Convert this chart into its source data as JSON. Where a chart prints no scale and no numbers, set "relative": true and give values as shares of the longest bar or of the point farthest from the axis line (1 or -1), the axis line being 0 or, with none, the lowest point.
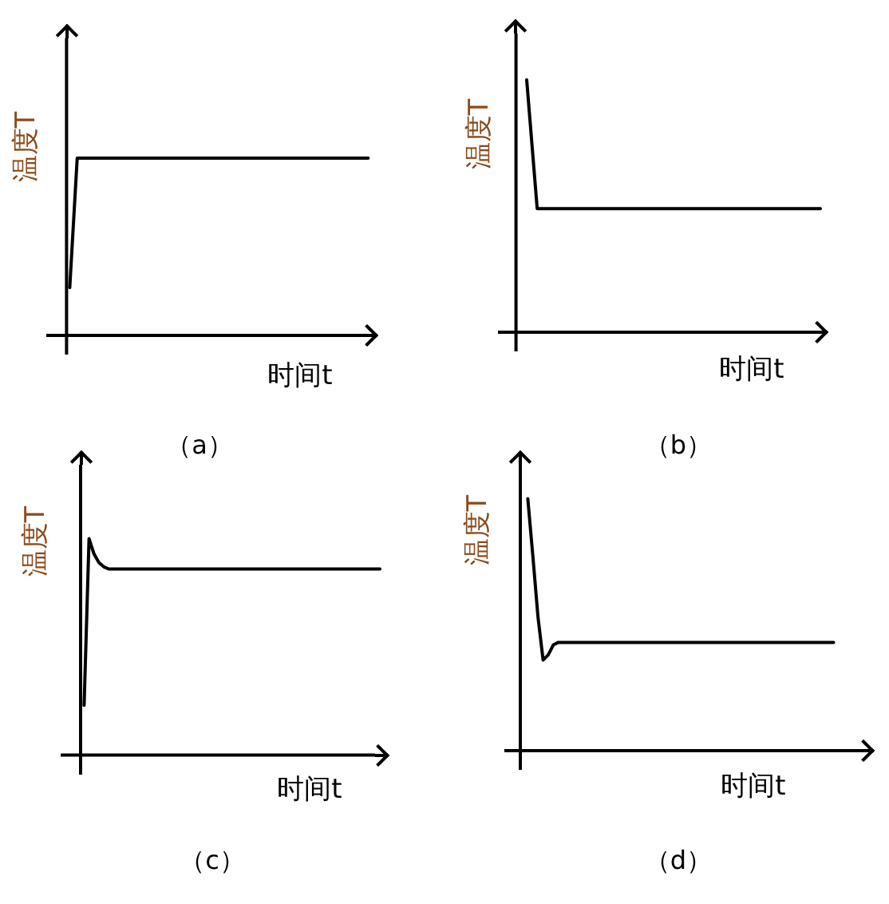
{
  "chart_data": [
    {
      "type": "line",
      "relative": true,
      "title": "（a）",
      "xlabel": "时间t",
      "ylabel": "温度T",
      "color": "#000000",
      "categories": [
        null,
        null,
        null,
        null,
        null,
        null,
        null,
        null,
        null,
        null,
        null,
        null,
        null,
        null,
        null,
        null,
        null,
        null,
        null,
        null,
        null,
        null,
        null,
        null,
        null,
        null,
        null,
        null,
        null,
        null,
        null,
        null,
        null,
        null,
        null,
        null,
        null,
        null,
        null,
        null,
        null
      ],
      "values": [
        0.27,
        1,
        1,
        1,
        1,
        1,
        1,
        1,
        1,
        1,
        1,
        1,
        1,
        1,
        1,
        1,
        1,
        1,
        1,
        1,
        1,
        1,
        1,
        1,
        1,
        1,
        1,
        1,
        1,
        1,
        1,
        1,
        1,
        1,
        1,
        1,
        1,
        1,
        1,
        1,
        1
      ]
    },
    {
      "type": "line",
      "relative": true,
      "title": "（b）",
      "xlabel": "时间t",
      "ylabel": "温度T",
      "color": "#000000",
      "categories": [
        null,
        null,
        null,
        null,
        null,
        null,
        null,
        null,
        null,
        null,
        null,
        null,
        null,
        null,
        null,
        null,
        null,
        null,
        null,
        null,
        null,
        null,
        null,
        null,
        null,
        null,
        null,
        null,
        null
      ],
      "values": [
        1,
        0.49,
        0.49,
        0.49,
        0.49,
        0.49,
        0.49,
        0.49,
        0.49,
        0.49,
        0.49,
        0.49,
        0.49,
        0.49,
        0.49,
        0.49,
        0.49,
        0.49,
        0.49,
        0.49,
        0.49,
        0.49,
        0.49,
        0.49,
        0.49,
        0.49,
        0.49,
        0.49,
        0.49
      ]
    },
    {
      "type": "line",
      "relative": true,
      "title": "（c）",
      "xlabel": "时间t",
      "ylabel": "温度T",
      "color": "#000000",
      "categories": [
        null,
        null,
        null,
        null,
        null,
        null,
        null,
        null,
        null,
        null,
        null,
        null,
        null,
        null,
        null,
        null,
        null,
        null,
        null,
        null,
        null,
        null,
        null,
        null,
        null,
        null,
        null,
        null,
        null,
        null,
        null,
        null,
        null,
        null,
        null,
        null,
        null,
        null,
        null,
        null,
        null,
        null,
        null,
        null,
        null,
        null,
        null,
        null,
        null,
        null,
        null,
        null,
        null,
        null,
        null,
        null,
        null,
        null,
        null,
        null,
        null
      ],
      "values": [
        0.23,
        1,
        0.93,
        0.89,
        0.87,
        0.86,
        0.86,
        0.86,
        0.86,
        0.86,
        0.86,
        0.86,
        0.86,
        0.86,
        0.86,
        0.86,
        0.86,
        0.86,
        0.86,
        0.86,
        0.86,
        0.86,
        0.86,
        0.86,
        0.86,
        0.86,
        0.86,
        0.86,
        0.86,
        0.86,
        0.86,
        0.86,
        0.86,
        0.86,
        0.86,
        0.86,
        0.86,
        0.86,
        0.86,
        0.86,
        0.86,
        0.86,
        0.86,
        0.86,
        0.86,
        0.86,
        0.86,
        0.86,
        0.86,
        0.86,
        0.86,
        0.86,
        0.86,
        0.86,
        0.86,
        0.86,
        0.86,
        0.86,
        0.86,
        0.86,
        0.86
      ]
    },
    {
      "type": "line",
      "relative": true,
      "title": "（d）",
      "xlabel": "时间t",
      "ylabel": "温度T",
      "color": "#000000",
      "categories": [
        null,
        null,
        null,
        null,
        null,
        null,
        null,
        null,
        null,
        null,
        null,
        null,
        null,
        null,
        null,
        null,
        null,
        null,
        null,
        null,
        null,
        null,
        null,
        null,
        null,
        null,
        null,
        null,
        null,
        null,
        null,
        null,
        null,
        null,
        null,
        null,
        null,
        null,
        null,
        null,
        null,
        null,
        null,
        null,
        null,
        null,
        null,
        null,
        null,
        null,
        null,
        null,
        null,
        null,
        null,
        null,
        null,
        null,
        null,
        null,
        null
      ],
      "values": [
        1,
        0.77,
        0.53,
        0.36,
        0.38,
        0.42,
        0.43,
        0.43,
        0.43,
        0.43,
        0.43,
        0.43,
        0.43,
        0.43,
        0.43,
        0.43,
        0.43,
        0.43,
        0.43,
        0.43,
        0.43,
        0.43,
        0.43,
        0.43,
        0.43,
        0.43,
        0.43,
        0.43,
        0.43,
        0.43,
        0.43,
        0.43,
        0.43,
        0.43,
        0.43,
        0.43,
        0.43,
        0.43,
        0.43,
        0.43,
        0.43,
        0.43,
        0.43,
        0.43,
        0.43,
        0.43,
        0.43,
        0.43,
        0.43,
        0.43,
        0.43,
        0.43,
        0.43,
        0.43,
        0.43,
        0.43,
        0.43,
        0.43,
        0.43,
        0.43,
        0.43
      ]
    }
  ]
}
